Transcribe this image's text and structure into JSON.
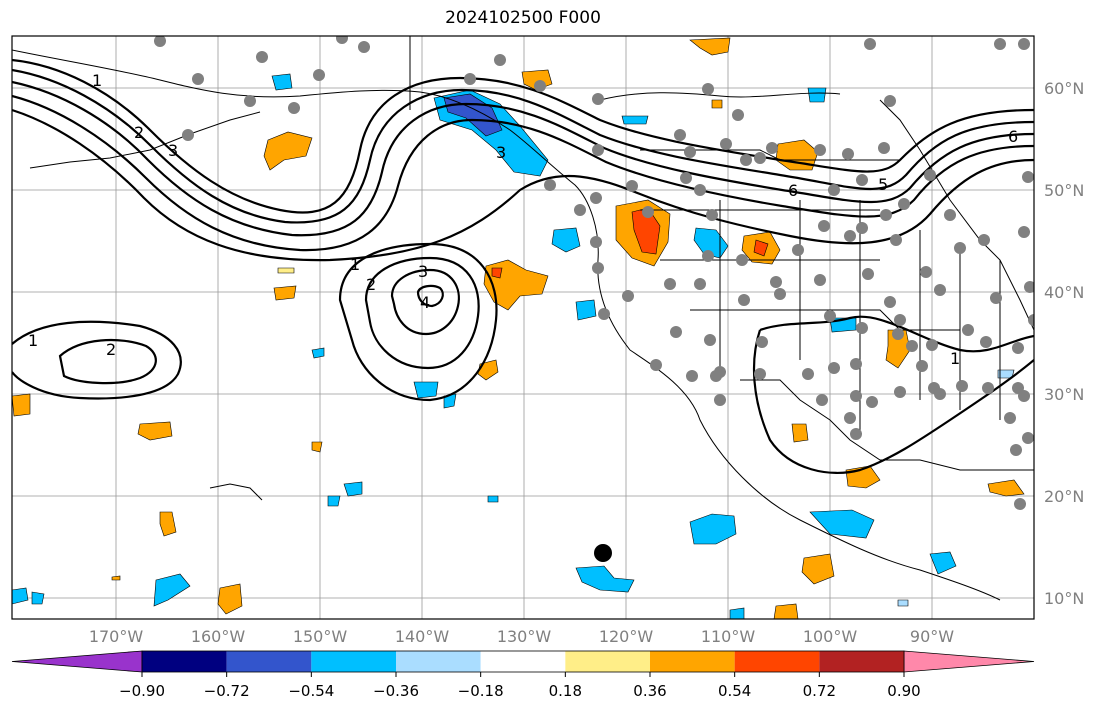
{
  "title": "2024102500 F000",
  "lon_labels": [
    "170°W",
    "160°W",
    "150°W",
    "140°W",
    "130°W",
    "120°W",
    "110°W",
    "100°W",
    "90°W"
  ],
  "lat_labels": [
    "60°N",
    "50°N",
    "40°N",
    "30°N",
    "20°N",
    "10°N"
  ],
  "colorbar": {
    "ticks": [
      "−0.90",
      "−0.72",
      "−0.54",
      "−0.36",
      "−0.18",
      "0.18",
      "0.36",
      "0.54",
      "0.72",
      "0.90"
    ],
    "colors": [
      "#9933cc",
      "#000080",
      "#3355cc",
      "#00bfff",
      "#aaddff",
      "#ffffff",
      "#ffee88",
      "#ffa500",
      "#ff4500",
      "#b22222",
      "#ff88aa"
    ]
  },
  "contour_labels": [
    "1",
    "2",
    "3",
    "1",
    "2",
    "3",
    "4",
    "1",
    "2",
    "3",
    "6",
    "5",
    "1",
    "6"
  ],
  "colors": {
    "positive_mid": "#ffa500",
    "positive_high": "#ff4500",
    "negative_mid": "#00bfff",
    "negative_low": "#3355cc",
    "station": "#808080",
    "marker": "#000000"
  }
}
